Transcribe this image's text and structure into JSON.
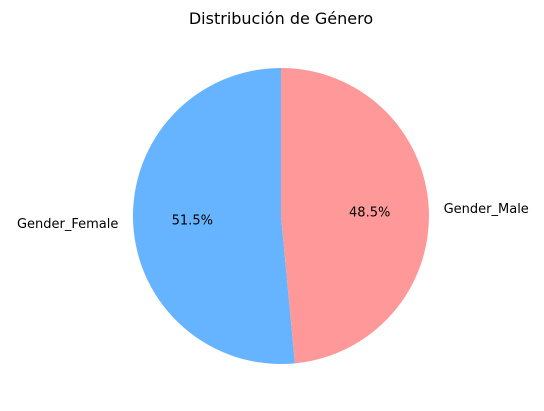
{
  "chart_data": {
    "type": "pie",
    "title": "Distribución de Género",
    "categories": [
      "Gender_Female",
      "Gender_Male"
    ],
    "values": [
      51.5,
      48.5
    ],
    "percent_labels": [
      "51.5%",
      "48.5%"
    ],
    "colors": [
      "#66b3ff",
      "#ff9999"
    ],
    "start": "top",
    "direction": "counterclockwise",
    "legend": "none"
  }
}
